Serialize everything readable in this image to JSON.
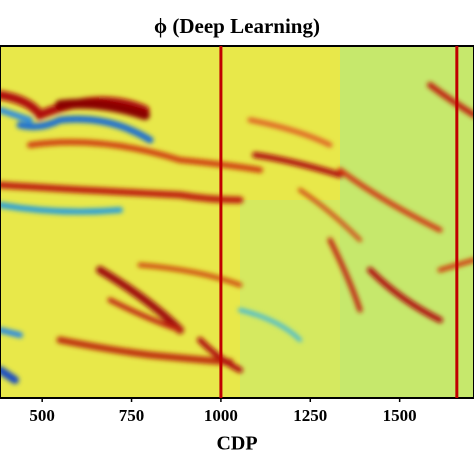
{
  "chart_data": {
    "type": "heatmap",
    "title": "ϕ (Deep Learning)",
    "xlabel": "CDP",
    "xlim": [
      382,
      1708
    ],
    "xticks": [
      500,
      750,
      1000,
      1250,
      1500
    ],
    "vlines": [
      1000,
      1660
    ],
    "vline_color": "#c00000"
  }
}
